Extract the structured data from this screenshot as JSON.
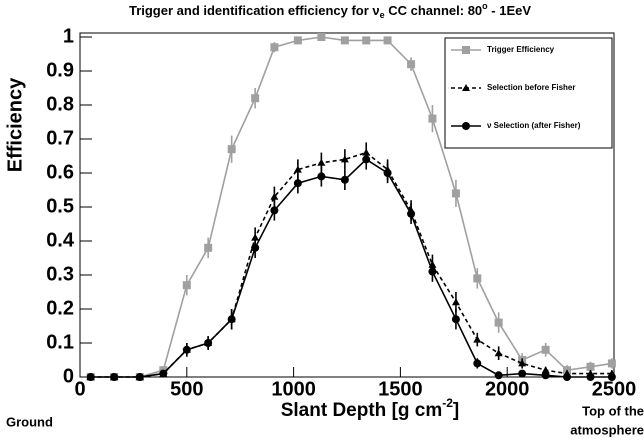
{
  "chart_data": {
    "type": "line",
    "title": [
      "Trigger and identification efficiency for ν",
      "e",
      " CC channel: 80",
      "o",
      " - 1EeV"
    ],
    "x_label": [
      "Slant Depth [g cm",
      "-2",
      "]"
    ],
    "y_label": "Efficiency",
    "annotations": [
      "Ground",
      "Top of the",
      "atmosphere"
    ],
    "x": [
      50,
      160,
      280,
      390,
      500,
      600,
      710,
      820,
      910,
      1020,
      1130,
      1240,
      1340,
      1440,
      1550,
      1650,
      1760,
      1860,
      1960,
      2070,
      2180,
      2280,
      2390,
      2490
    ],
    "series": [
      {
        "name": "Trigger Efficiency",
        "color": "#a0a0a0",
        "marker": "square",
        "linestyle": "solid",
        "values": [
          0,
          0,
          0,
          0.02,
          0.27,
          0.38,
          0.67,
          0.82,
          0.97,
          0.99,
          1.0,
          0.99,
          0.99,
          0.99,
          0.92,
          0.76,
          0.54,
          0.29,
          0.16,
          0.05,
          0.08,
          0.02,
          0.03,
          0.04
        ],
        "errors": [
          0.01,
          0.01,
          0.01,
          0.01,
          0.03,
          0.03,
          0.04,
          0.03,
          0.015,
          0.01,
          0.005,
          0.01,
          0.01,
          0.01,
          0.02,
          0.04,
          0.04,
          0.03,
          0.03,
          0.02,
          0.02,
          0.015,
          0.015,
          0.015
        ]
      },
      {
        "name": "Selection before Fisher",
        "color": "#000000",
        "marker": "triangle",
        "linestyle": "dashed",
        "values": [
          0,
          0,
          0,
          0.01,
          0.08,
          0.1,
          0.17,
          0.41,
          0.53,
          0.61,
          0.63,
          0.64,
          0.66,
          0.61,
          0.49,
          0.33,
          0.22,
          0.11,
          0.07,
          0.04,
          0.02,
          0.01,
          0.01,
          0.01
        ],
        "errors": [
          0,
          0,
          0,
          0.005,
          0.02,
          0.02,
          0.03,
          0.03,
          0.03,
          0.03,
          0.03,
          0.03,
          0.03,
          0.03,
          0.03,
          0.03,
          0.03,
          0.02,
          0.02,
          0.015,
          0.01,
          0.01,
          0.01,
          0.01
        ]
      },
      {
        "name": "ν Selection (after Fisher)",
        "color": "#000000",
        "marker": "circle",
        "linestyle": "solid",
        "values": [
          0,
          0,
          0,
          0.01,
          0.08,
          0.1,
          0.17,
          0.38,
          0.49,
          0.57,
          0.59,
          0.58,
          0.64,
          0.6,
          0.48,
          0.31,
          0.17,
          0.04,
          0.005,
          0.01,
          0.005,
          0,
          0,
          0
        ],
        "errors": [
          0,
          0,
          0,
          0.005,
          0.02,
          0.02,
          0.03,
          0.03,
          0.03,
          0.03,
          0.03,
          0.03,
          0.03,
          0.03,
          0.03,
          0.03,
          0.03,
          0.015,
          0.005,
          0.005,
          0.005,
          0,
          0,
          0
        ]
      }
    ],
    "xlim": [
      0,
      2500
    ],
    "xticks": [
      0,
      500,
      1000,
      1500,
      2000,
      2500
    ],
    "ylim": [
      0,
      1
    ],
    "yticks": [
      0,
      0.1,
      0.2,
      0.3,
      0.4,
      0.5,
      0.6,
      0.7,
      0.8,
      0.9,
      1
    ],
    "legend": "upper right"
  }
}
